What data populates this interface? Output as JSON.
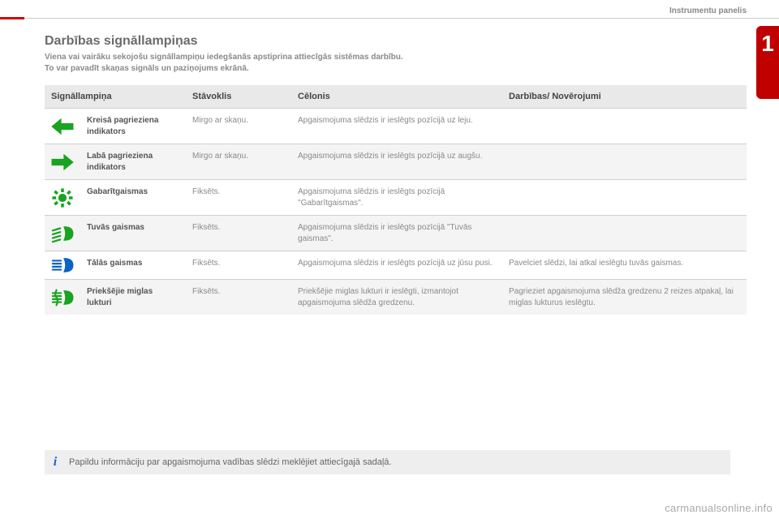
{
  "breadcrumb": "Instrumentu panelis",
  "side_tab": "1",
  "title": "Darbības signāllampiņas",
  "subtitle_line1": "Viena vai vairāku sekojošu signāllampiņu iedegšanās apstiprina attiecīgās sistēmas darbību.",
  "subtitle_line2": "To var pavadīt skaņas signāls un paziņojums ekrānā.",
  "table": {
    "headers": {
      "lamp": "Signāllampiņa",
      "state": "Stāvoklis",
      "cause": "Cēlonis",
      "action": "Darbības/ Novērojumi"
    },
    "rows": [
      {
        "icon": "arrow-left",
        "icon_color": "#1aa321",
        "name": "Kreisā pagrieziena indikators",
        "state": "Mirgo ar skaņu.",
        "cause": "Apgaismojuma slēdzis ir ieslēgts pozīcijā uz leju.",
        "action": ""
      },
      {
        "icon": "arrow-right",
        "icon_color": "#1aa321",
        "name": "Labā pagrieziena indikators",
        "state": "Mirgo ar skaņu.",
        "cause": "Apgaismojuma slēdzis ir ieslēgts pozīcijā uz augšu.",
        "action": ""
      },
      {
        "icon": "sidelights",
        "icon_color": "#1aa321",
        "name": "Gabarītgaismas",
        "state": "Fiksēts.",
        "cause": "Apgaismojuma slēdzis ir ieslēgts pozīcijā \"Gabarītgaismas\".",
        "action": ""
      },
      {
        "icon": "low-beam",
        "icon_color": "#1aa321",
        "name": "Tuvās gaismas",
        "state": "Fiksēts.",
        "cause": "Apgaismojuma slēdzis ir ieslēgts pozīcijā \"Tuvās gaismas\".",
        "action": ""
      },
      {
        "icon": "high-beam",
        "icon_color": "#0b63c4",
        "name": "Tālās gaismas",
        "state": "Fiksēts.",
        "cause": "Apgaismojuma slēdzis ir ieslēgts pozīcijā uz jūsu pusi.",
        "action": "Pavelciet slēdzi, lai atkal ieslēgtu tuvās gaismas."
      },
      {
        "icon": "front-fog",
        "icon_color": "#1aa321",
        "name": "Priekšējie miglas lukturi",
        "state": "Fiksēts.",
        "cause": "Priekšējie miglas lukturi ir ieslēgti, izmantojot apgaismojuma slēdža gredzenu.",
        "action": "Pagrieziet apgaismojuma slēdža gredzenu 2 reizes atpakaļ, lai miglas lukturus ieslēgtu."
      }
    ]
  },
  "info_text": "Papildu informāciju par apgaismojuma vadības slēdzi meklējiet attiecīgajā sadaļā.",
  "watermark": "carmanualsonline.info",
  "colors": {
    "accent_red": "#c00000",
    "header_bg": "#e9e9e9",
    "row_alt_bg": "#f4f4f4",
    "info_bg": "#eeeeee",
    "info_i_color": "#1469c7",
    "text_muted": "#8a8a8a",
    "text_strong": "#555555",
    "border": "#d0d0d0"
  }
}
